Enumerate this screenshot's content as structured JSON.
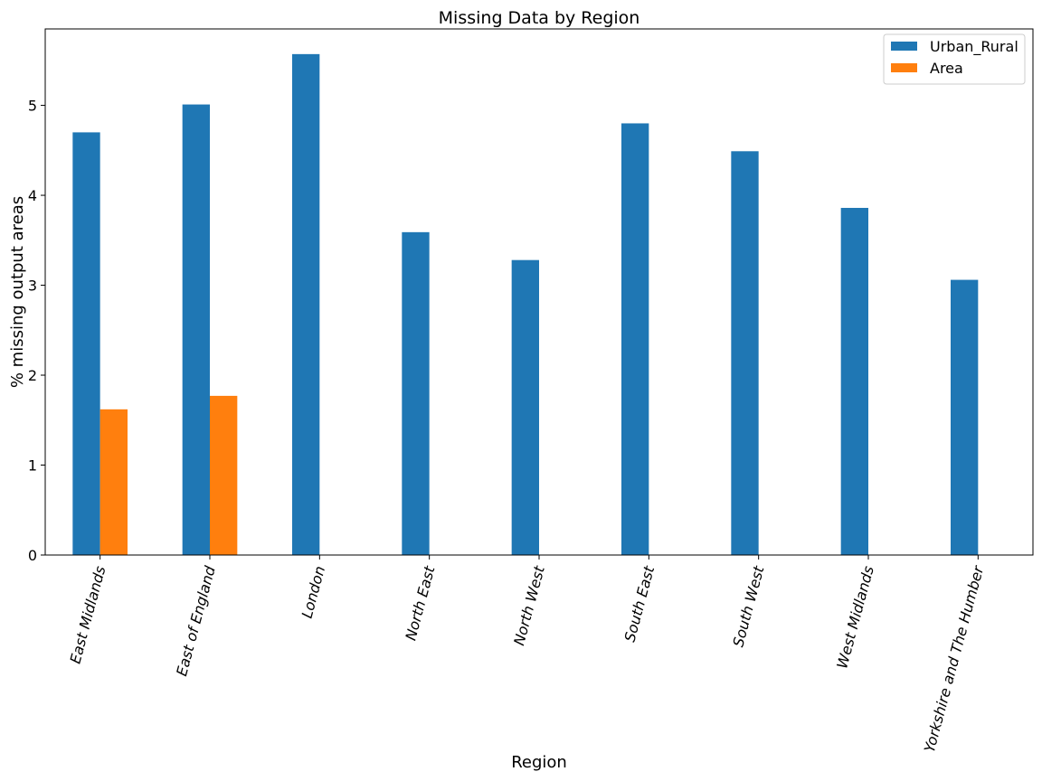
{
  "chart_data": {
    "type": "bar",
    "title": "Missing Data by Region",
    "xlabel": "Region",
    "ylabel": "% missing output areas",
    "categories": [
      "East Midlands",
      "East of England",
      "London",
      "North East",
      "North West",
      "South East",
      "South West",
      "West Midlands",
      "Yorkshire and The Humber"
    ],
    "series": [
      {
        "name": "Urban_Rural",
        "color": "#1f77b4",
        "values": [
          4.7,
          5.01,
          5.57,
          3.59,
          3.28,
          4.8,
          4.49,
          3.86,
          3.06
        ]
      },
      {
        "name": "Area",
        "color": "#ff7f0e",
        "values": [
          1.62,
          1.77,
          0,
          0,
          0,
          0,
          0,
          0,
          0
        ]
      }
    ],
    "ylim": [
      0,
      5.85
    ],
    "yticks": [
      0,
      1,
      2,
      3,
      4,
      5
    ],
    "grid": false,
    "legend_position": "top-right"
  }
}
